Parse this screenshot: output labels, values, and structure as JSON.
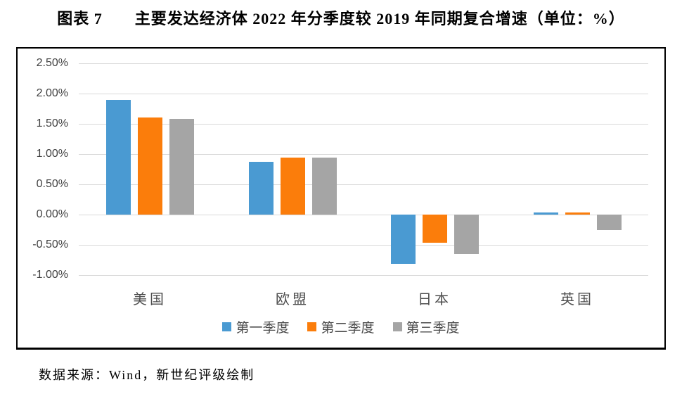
{
  "title": "图表 7　　主要发达经济体 2022 年分季度较 2019 年同期复合增速（单位：%）",
  "footer": {
    "source": "数据来源：Wind，新世纪评级绘制"
  },
  "colors": {
    "q1_blue": "#4a9ad2",
    "q2_orange": "#fb7d0b",
    "q3_gray": "#a5a5a5",
    "gridline": "#d9d9d9",
    "border": "#000000"
  },
  "chart_data": {
    "type": "bar",
    "title": "图表 7　主要发达经济体 2022 年分季度较 2019 年同期复合增速（单位：%）",
    "categories": [
      "美国",
      "欧盟",
      "日本",
      "英国"
    ],
    "series": [
      {
        "name": "第一季度",
        "color": "#4a9ad2",
        "values": [
          1.89,
          0.87,
          -0.81,
          0.04
        ]
      },
      {
        "name": "第二季度",
        "color": "#fb7d0b",
        "values": [
          1.61,
          0.94,
          -0.46,
          0.03
        ]
      },
      {
        "name": "第三季度",
        "color": "#a5a5a5",
        "values": [
          1.58,
          0.94,
          -0.65,
          -0.26
        ]
      }
    ],
    "xlabel": "",
    "ylabel": "",
    "ylim": [
      -1.0,
      2.5
    ],
    "y_ticks": [
      "2.50%",
      "2.00%",
      "1.50%",
      "1.00%",
      "0.50%",
      "0.00%",
      "-0.50%",
      "-1.00%"
    ],
    "y_tick_values": [
      2.5,
      2.0,
      1.5,
      1.0,
      0.5,
      0.0,
      -0.5,
      -1.0
    ],
    "grid": true,
    "legend_position": "bottom",
    "unit": "%"
  }
}
